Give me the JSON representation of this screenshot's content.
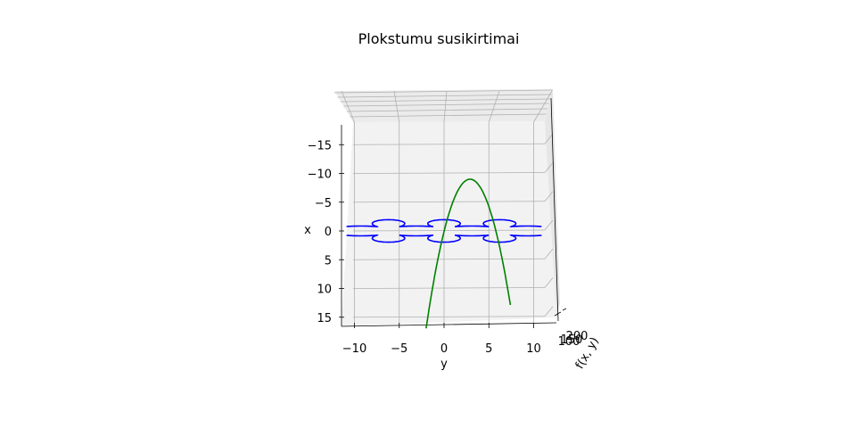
{
  "chart_data": {
    "type": "line",
    "projection": "3d",
    "title": "Plokstumu susikirtimai",
    "xlabel": "y",
    "ylabel": "x",
    "zlabel": "f(x, y)",
    "xlim": [
      -12,
      12
    ],
    "ylim": [
      -17,
      17
    ],
    "x_ticks": [
      "−10",
      "−5",
      "0",
      "5",
      "10"
    ],
    "y_ticks": [
      "−15",
      "−10",
      "−5",
      "0",
      "5",
      "10",
      "15"
    ],
    "z_ticks": [
      "100",
      "150",
      "200"
    ],
    "grid": true,
    "series": [
      {
        "color": "#0000ff",
        "curve": "wavy",
        "x": [
          -10,
          -8,
          -6,
          -4,
          -2,
          0,
          2,
          4,
          6,
          8,
          10
        ],
        "y": [
          -1.3,
          -1.0,
          -1.6,
          -1.0,
          -1.4,
          -1.2,
          -1.4,
          -1.0,
          -1.6,
          -1.0,
          -1.3
        ]
      },
      {
        "color": "#0000ff",
        "curve": "wavy",
        "x": [
          -10,
          -8,
          -6,
          -4,
          -2,
          0,
          2,
          4,
          6,
          8,
          10
        ],
        "y": [
          1.3,
          1.0,
          1.6,
          1.0,
          1.4,
          1.2,
          1.4,
          1.0,
          1.6,
          1.0,
          1.3
        ]
      },
      {
        "color": "#008000",
        "curve": "parabola",
        "x": [
          -2,
          -1,
          0,
          1,
          2,
          3,
          4,
          5,
          6,
          7
        ],
        "y": [
          -16,
          -9,
          -1.5,
          4,
          8,
          9,
          7,
          0,
          -9,
          -16
        ]
      }
    ]
  }
}
